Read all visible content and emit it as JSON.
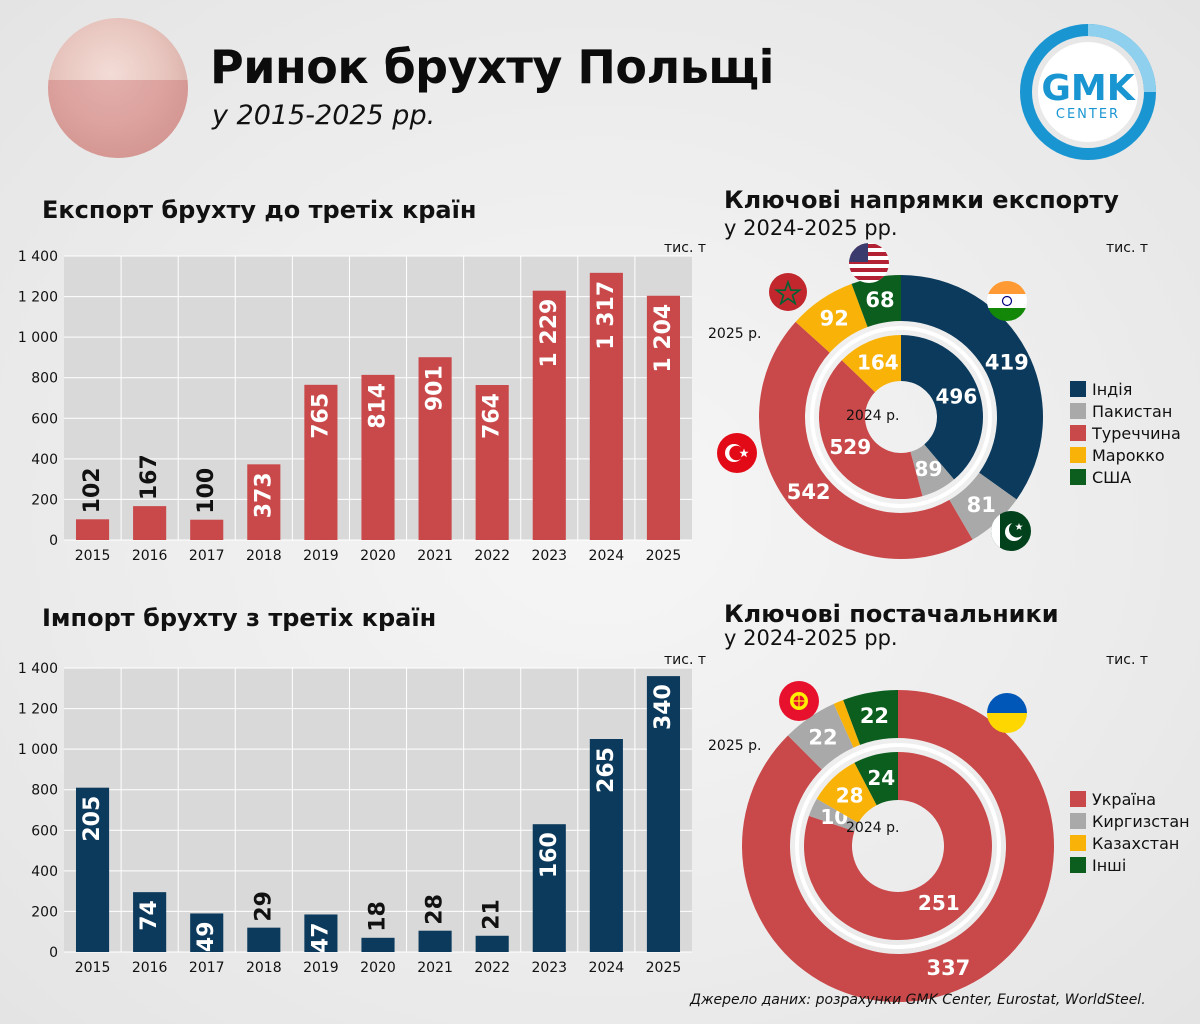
{
  "header": {
    "title": "Ринок брухту Польщі",
    "subtitle": "у 2015-2025 рр.",
    "logo_top": "GMK",
    "logo_bottom": "CENTER"
  },
  "colors": {
    "red": "#C9484A",
    "navy": "#0C3A5C",
    "grey": "#A9A9A9",
    "yellow": "#F9B208",
    "green": "#0B5E1E",
    "logo_blue": "#1996D2"
  },
  "export_chart": {
    "title": "Експорт брухту до третіх країн",
    "unit": "тис. т"
  },
  "import_chart": {
    "title": "Імпорт брухту з третіх країн",
    "unit": "тис. т"
  },
  "export_directions": {
    "title": "Ключові напрямки експорту",
    "subtitle": "у 2024-2025 рр.",
    "unit": "тис. т",
    "outer_label": "2025 р.",
    "inner_label": "2024 р."
  },
  "suppliers": {
    "title": "Ключові постачальники",
    "subtitle": "у 2024-2025 рр.",
    "unit": "тис. т",
    "outer_label": "2025 р.",
    "inner_label": "2024 р."
  },
  "source": "Джерело даних: розрахунки GMK Center, Eurostat, WorldSteel.",
  "chart_data": [
    {
      "type": "bar",
      "title": "Експорт брухту до третіх країн",
      "ylabel": "тис. т",
      "categories": [
        "2015",
        "2016",
        "2017",
        "2018",
        "2019",
        "2020",
        "2021",
        "2022",
        "2023",
        "2024",
        "2025"
      ],
      "values": [
        102,
        167,
        100,
        373,
        765,
        814,
        901,
        764,
        1229,
        1317,
        1204
      ],
      "value_labels": [
        "102",
        "167",
        "100",
        "373",
        "765",
        "814",
        "901",
        "764",
        "1 229",
        "1 317",
        "1 204"
      ],
      "ylim": [
        0,
        1400
      ],
      "yticks": [
        0,
        200,
        400,
        600,
        800,
        1000,
        1200,
        1400
      ],
      "ytick_labels": [
        "0",
        "200",
        "400",
        "600",
        "800",
        "1 000",
        "1 200",
        "1 400"
      ],
      "grid": true,
      "color": "#C9484A"
    },
    {
      "type": "bar",
      "title": "Імпорт брухту з третіх країн",
      "ylabel": "тис. т",
      "categories": [
        "2015",
        "2016",
        "2017",
        "2018",
        "2019",
        "2020",
        "2021",
        "2022",
        "2023",
        "2024",
        "2025"
      ],
      "values": [
        205,
        74,
        49,
        29,
        47,
        18,
        28,
        21,
        160,
        265,
        340
      ],
      "bar_heights": [
        810,
        295,
        190,
        120,
        185,
        70,
        105,
        80,
        630,
        1050,
        1360
      ],
      "value_labels": [
        "205",
        "74",
        "49",
        "29",
        "47",
        "18",
        "28",
        "21",
        "160",
        "265",
        "340"
      ],
      "ylim": [
        0,
        1400
      ],
      "yticks": [
        0,
        200,
        400,
        600,
        800,
        1000,
        1200,
        1400
      ],
      "ytick_labels": [
        "0",
        "200",
        "400",
        "600",
        "800",
        "1 000",
        "1 200",
        "1 400"
      ],
      "grid": true,
      "color": "#0C3A5C"
    },
    {
      "type": "pie",
      "title": "Ключові напрямки експорту",
      "subtitle": "у 2024-2025 рр.",
      "unit": "тис. т",
      "legend": [
        "Індія",
        "Пакистан",
        "Туреччина",
        "Марокко",
        "США"
      ],
      "colors": [
        "#0C3A5C",
        "#A9A9A9",
        "#C9484A",
        "#F9B208",
        "#0B5E1E"
      ],
      "series": [
        {
          "name": "2025 р.",
          "ring": "outer",
          "values": [
            419,
            81,
            542,
            92,
            68
          ]
        },
        {
          "name": "2024 р.",
          "ring": "inner",
          "values": [
            496,
            89,
            529,
            164,
            0
          ]
        }
      ]
    },
    {
      "type": "pie",
      "title": "Ключові постачальники",
      "subtitle": "у 2024-2025 рр.",
      "unit": "тис. т",
      "legend": [
        "Україна",
        "Киргизстан",
        "Казахстан",
        "Інші"
      ],
      "colors": [
        "#C9484A",
        "#A9A9A9",
        "#F9B208",
        "#0B5E1E"
      ],
      "series": [
        {
          "name": "2025 р.",
          "ring": "outer",
          "values": [
            337,
            22,
            4,
            22
          ],
          "labels": [
            "337",
            "22",
            "",
            "22"
          ]
        },
        {
          "name": "2024 р.",
          "ring": "inner",
          "values": [
            251,
            10,
            28,
            24
          ],
          "labels": [
            "251",
            "10",
            "28",
            "24"
          ]
        }
      ]
    }
  ]
}
